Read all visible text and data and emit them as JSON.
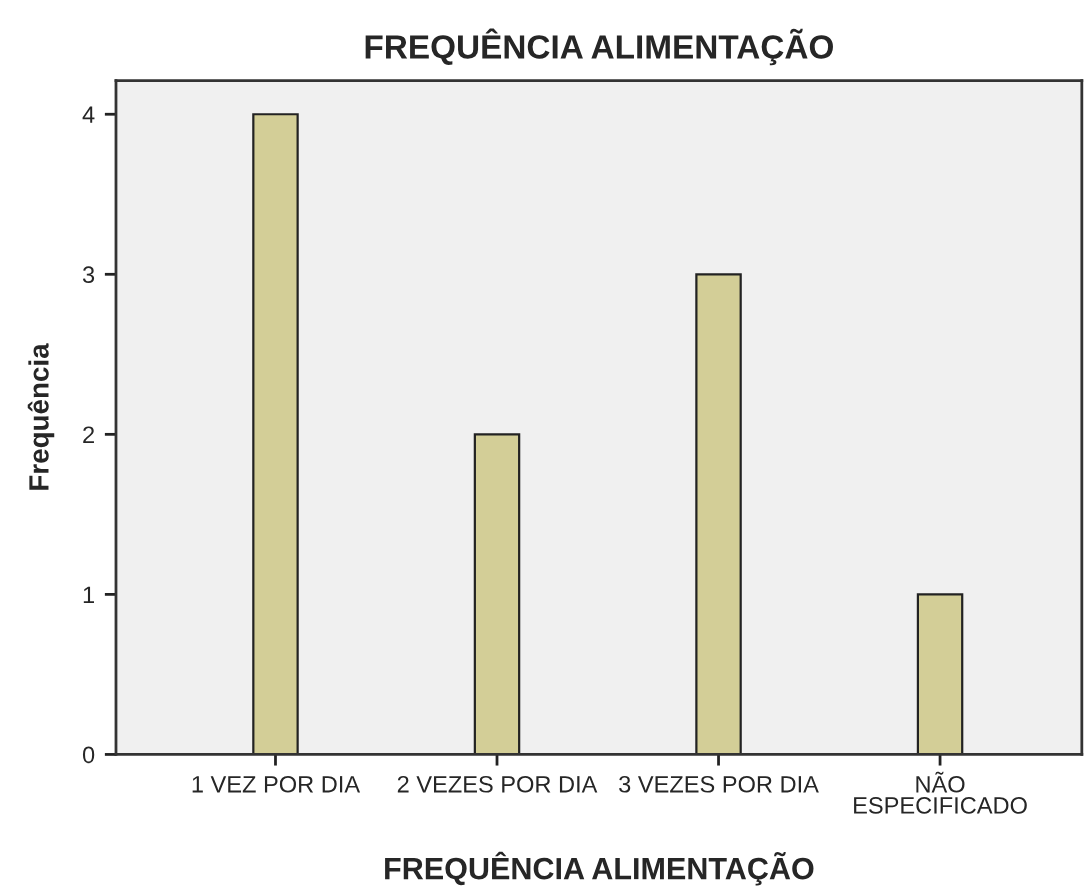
{
  "chart_data": {
    "type": "bar",
    "title": "FREQUÊNCIA ALIMENTAÇÃO",
    "xlabel": "FREQUÊNCIA ALIMENTAÇÃO",
    "ylabel": "Frequência",
    "categories": [
      "1 VEZ POR DIA",
      "2 VEZES POR DIA",
      "3 VEZES POR DIA",
      "NÃO\nESPECIFICADO"
    ],
    "values": [
      4,
      2,
      3,
      1
    ],
    "color": "#d3ce97",
    "ylim": [
      0,
      4.21
    ],
    "yticks": [
      0,
      1,
      2,
      3,
      4
    ],
    "grid": false,
    "legend": false
  }
}
